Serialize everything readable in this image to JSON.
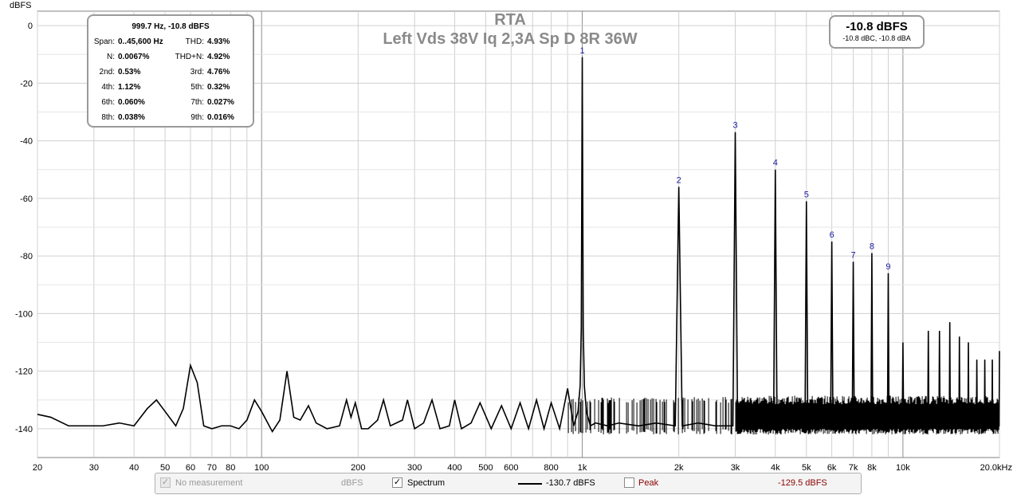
{
  "title": {
    "line1": "RTA",
    "line2": "Left Vds 38V Iq 2,3A Sp D 8R 36W"
  },
  "y_unit": "dBFS",
  "stats": {
    "header": "999.7 Hz, -10.8 dBFS",
    "rows": [
      {
        "l1": "Span:",
        "v1": "0..45,600 Hz",
        "l2": "THD:",
        "v2": "4.93%"
      },
      {
        "l1": "N:",
        "v1": "0.0067%",
        "l2": "THD+N:",
        "v2": "4.92%"
      },
      {
        "l1": "2nd:",
        "v1": "0.53%",
        "l2": "3rd:",
        "v2": "4.76%"
      },
      {
        "l1": "4th:",
        "v1": "1.12%",
        "l2": "5th:",
        "v2": "0.32%"
      },
      {
        "l1": "6th:",
        "v1": "0.060%",
        "l2": "7th:",
        "v2": "0.027%"
      },
      {
        "l1": "8th:",
        "v1": "0.038%",
        "l2": "9th:",
        "v2": "0.016%"
      }
    ]
  },
  "level": {
    "main": "-10.8 dBFS",
    "sub": "-10.8 dBC, -10.8 dBA"
  },
  "legend": {
    "no_measurement": "No measurement",
    "nm_unit": "dBFS",
    "spectrum": "Spectrum",
    "spectrum_value": "-130.7 dBFS",
    "peak": "Peak",
    "peak_value": "-129.5 dBFS",
    "spectrum_checked": "✓",
    "nm_checked": "✓"
  },
  "colors": {
    "trace": "#000000",
    "harmonic_label": "#1a1aa0",
    "peak": "#8b0000",
    "grid": "#d0d0d0"
  },
  "chart_data": {
    "type": "line",
    "x_scale": "log",
    "xlim": [
      20,
      20000
    ],
    "ylim": [
      -150,
      5
    ],
    "ylabel": "dBFS",
    "x_ticks": [
      {
        "v": 20,
        "label": "20"
      },
      {
        "v": 30,
        "label": "30"
      },
      {
        "v": 40,
        "label": "40"
      },
      {
        "v": 50,
        "label": "50"
      },
      {
        "v": 60,
        "label": "60"
      },
      {
        "v": 70,
        "label": "70"
      },
      {
        "v": 80,
        "label": "80"
      },
      {
        "v": 100,
        "label": "100"
      },
      {
        "v": 200,
        "label": "200"
      },
      {
        "v": 300,
        "label": "300"
      },
      {
        "v": 400,
        "label": "400"
      },
      {
        "v": 500,
        "label": "500"
      },
      {
        "v": 600,
        "label": "600"
      },
      {
        "v": 800,
        "label": "800"
      },
      {
        "v": 1000,
        "label": "1k"
      },
      {
        "v": 2000,
        "label": "2k"
      },
      {
        "v": 3000,
        "label": "3k"
      },
      {
        "v": 4000,
        "label": "4k"
      },
      {
        "v": 5000,
        "label": "5k"
      },
      {
        "v": 6000,
        "label": "6k"
      },
      {
        "v": 7000,
        "label": "7k"
      },
      {
        "v": 8000,
        "label": "8k"
      },
      {
        "v": 10000,
        "label": "10k"
      },
      {
        "v": 20000,
        "label": "20.0kHz"
      }
    ],
    "y_ticks": [
      0,
      -20,
      -40,
      -60,
      -80,
      -100,
      -120,
      -140
    ],
    "baseline": [
      [
        20,
        -135
      ],
      [
        22,
        -136
      ],
      [
        25,
        -139
      ],
      [
        28,
        -139
      ],
      [
        32,
        -139
      ],
      [
        36,
        -138
      ],
      [
        40,
        -139
      ],
      [
        44,
        -133
      ],
      [
        47,
        -130
      ],
      [
        50,
        -134
      ],
      [
        54,
        -139
      ],
      [
        57,
        -133
      ],
      [
        60,
        -118
      ],
      [
        63,
        -124
      ],
      [
        66,
        -139
      ],
      [
        70,
        -140
      ],
      [
        75,
        -139
      ],
      [
        80,
        -139
      ],
      [
        85,
        -140
      ],
      [
        90,
        -137
      ],
      [
        95,
        -130
      ],
      [
        100,
        -134
      ],
      [
        108,
        -141
      ],
      [
        114,
        -137
      ],
      [
        120,
        -120
      ],
      [
        126,
        -136
      ],
      [
        132,
        -137
      ],
      [
        140,
        -132
      ],
      [
        148,
        -138
      ],
      [
        160,
        -140
      ],
      [
        175,
        -139
      ],
      [
        184,
        -130
      ],
      [
        190,
        -136
      ],
      [
        196,
        -131
      ],
      [
        205,
        -140
      ],
      [
        215,
        -140
      ],
      [
        230,
        -137
      ],
      [
        240,
        -130
      ],
      [
        252,
        -139
      ],
      [
        275,
        -137
      ],
      [
        285,
        -130
      ],
      [
        300,
        -140
      ],
      [
        320,
        -138
      ],
      [
        340,
        -130
      ],
      [
        360,
        -140
      ],
      [
        385,
        -139
      ],
      [
        400,
        -130
      ],
      [
        420,
        -140
      ],
      [
        450,
        -138
      ],
      [
        480,
        -131
      ],
      [
        520,
        -140
      ],
      [
        560,
        -132
      ],
      [
        600,
        -140
      ],
      [
        640,
        -131
      ],
      [
        680,
        -140
      ],
      [
        720,
        -130
      ],
      [
        760,
        -140
      ],
      [
        800,
        -131
      ],
      [
        850,
        -140
      ],
      [
        900,
        -126
      ],
      [
        940,
        -139
      ],
      [
        970,
        -134
      ],
      [
        985,
        -125
      ],
      [
        993,
        -105
      ],
      [
        1000,
        -11
      ],
      [
        1007,
        -105
      ],
      [
        1015,
        -125
      ],
      [
        1030,
        -134
      ],
      [
        1060,
        -139
      ],
      [
        1100,
        -138
      ],
      [
        1200,
        -139
      ],
      [
        1300,
        -138
      ],
      [
        1500,
        -139
      ],
      [
        1700,
        -138
      ],
      [
        1950,
        -139
      ],
      [
        2000,
        -56
      ],
      [
        2050,
        -139
      ],
      [
        2300,
        -138
      ],
      [
        2600,
        -139
      ],
      [
        2950,
        -139
      ],
      [
        3000,
        -37
      ],
      [
        3050,
        -139
      ],
      [
        3500,
        -138
      ],
      [
        3950,
        -139
      ],
      [
        4000,
        -50
      ],
      [
        4050,
        -139
      ],
      [
        4500,
        -138
      ],
      [
        4950,
        -139
      ],
      [
        5000,
        -61
      ],
      [
        5050,
        -139
      ],
      [
        5500,
        -138
      ],
      [
        5950,
        -139
      ],
      [
        6000,
        -75
      ],
      [
        6050,
        -139
      ],
      [
        6500,
        -138
      ],
      [
        6950,
        -139
      ],
      [
        7000,
        -82
      ],
      [
        7050,
        -139
      ],
      [
        7500,
        -138
      ],
      [
        7950,
        -139
      ],
      [
        8000,
        -79
      ],
      [
        8050,
        -139
      ],
      [
        8600,
        -138
      ],
      [
        8950,
        -139
      ],
      [
        9000,
        -86
      ],
      [
        9050,
        -139
      ],
      [
        9500,
        -138
      ],
      [
        9950,
        -139
      ],
      [
        10000,
        -110
      ],
      [
        10050,
        -139
      ],
      [
        11000,
        -138
      ],
      [
        11950,
        -139
      ],
      [
        12000,
        -106
      ],
      [
        12050,
        -139
      ],
      [
        12950,
        -139
      ],
      [
        13000,
        -106
      ],
      [
        13050,
        -139
      ],
      [
        13950,
        -139
      ],
      [
        14000,
        -103
      ],
      [
        14050,
        -139
      ],
      [
        14950,
        -139
      ],
      [
        15000,
        -108
      ],
      [
        15050,
        -139
      ],
      [
        15950,
        -139
      ],
      [
        16000,
        -110
      ],
      [
        16050,
        -139
      ],
      [
        16950,
        -139
      ],
      [
        17000,
        -116
      ],
      [
        17050,
        -139
      ],
      [
        17950,
        -139
      ],
      [
        18000,
        -116
      ],
      [
        18050,
        -139
      ],
      [
        18950,
        -139
      ],
      [
        19000,
        -116
      ],
      [
        19050,
        -139
      ],
      [
        19950,
        -139
      ],
      [
        20000,
        -113
      ]
    ],
    "noise_band": {
      "from": 900,
      "to": 20000,
      "top": -130,
      "bottom": -141,
      "dense_from": 3000
    },
    "harmonics": [
      {
        "label": "1",
        "f": 1000,
        "db": -11
      },
      {
        "label": "2",
        "f": 2000,
        "db": -56
      },
      {
        "label": "3",
        "f": 3000,
        "db": -37
      },
      {
        "label": "4",
        "f": 4000,
        "db": -50
      },
      {
        "label": "5",
        "f": 5000,
        "db": -61
      },
      {
        "label": "6",
        "f": 6000,
        "db": -75
      },
      {
        "label": "7",
        "f": 7000,
        "db": -82
      },
      {
        "label": "8",
        "f": 8000,
        "db": -79
      },
      {
        "label": "9",
        "f": 9000,
        "db": -86
      }
    ]
  }
}
